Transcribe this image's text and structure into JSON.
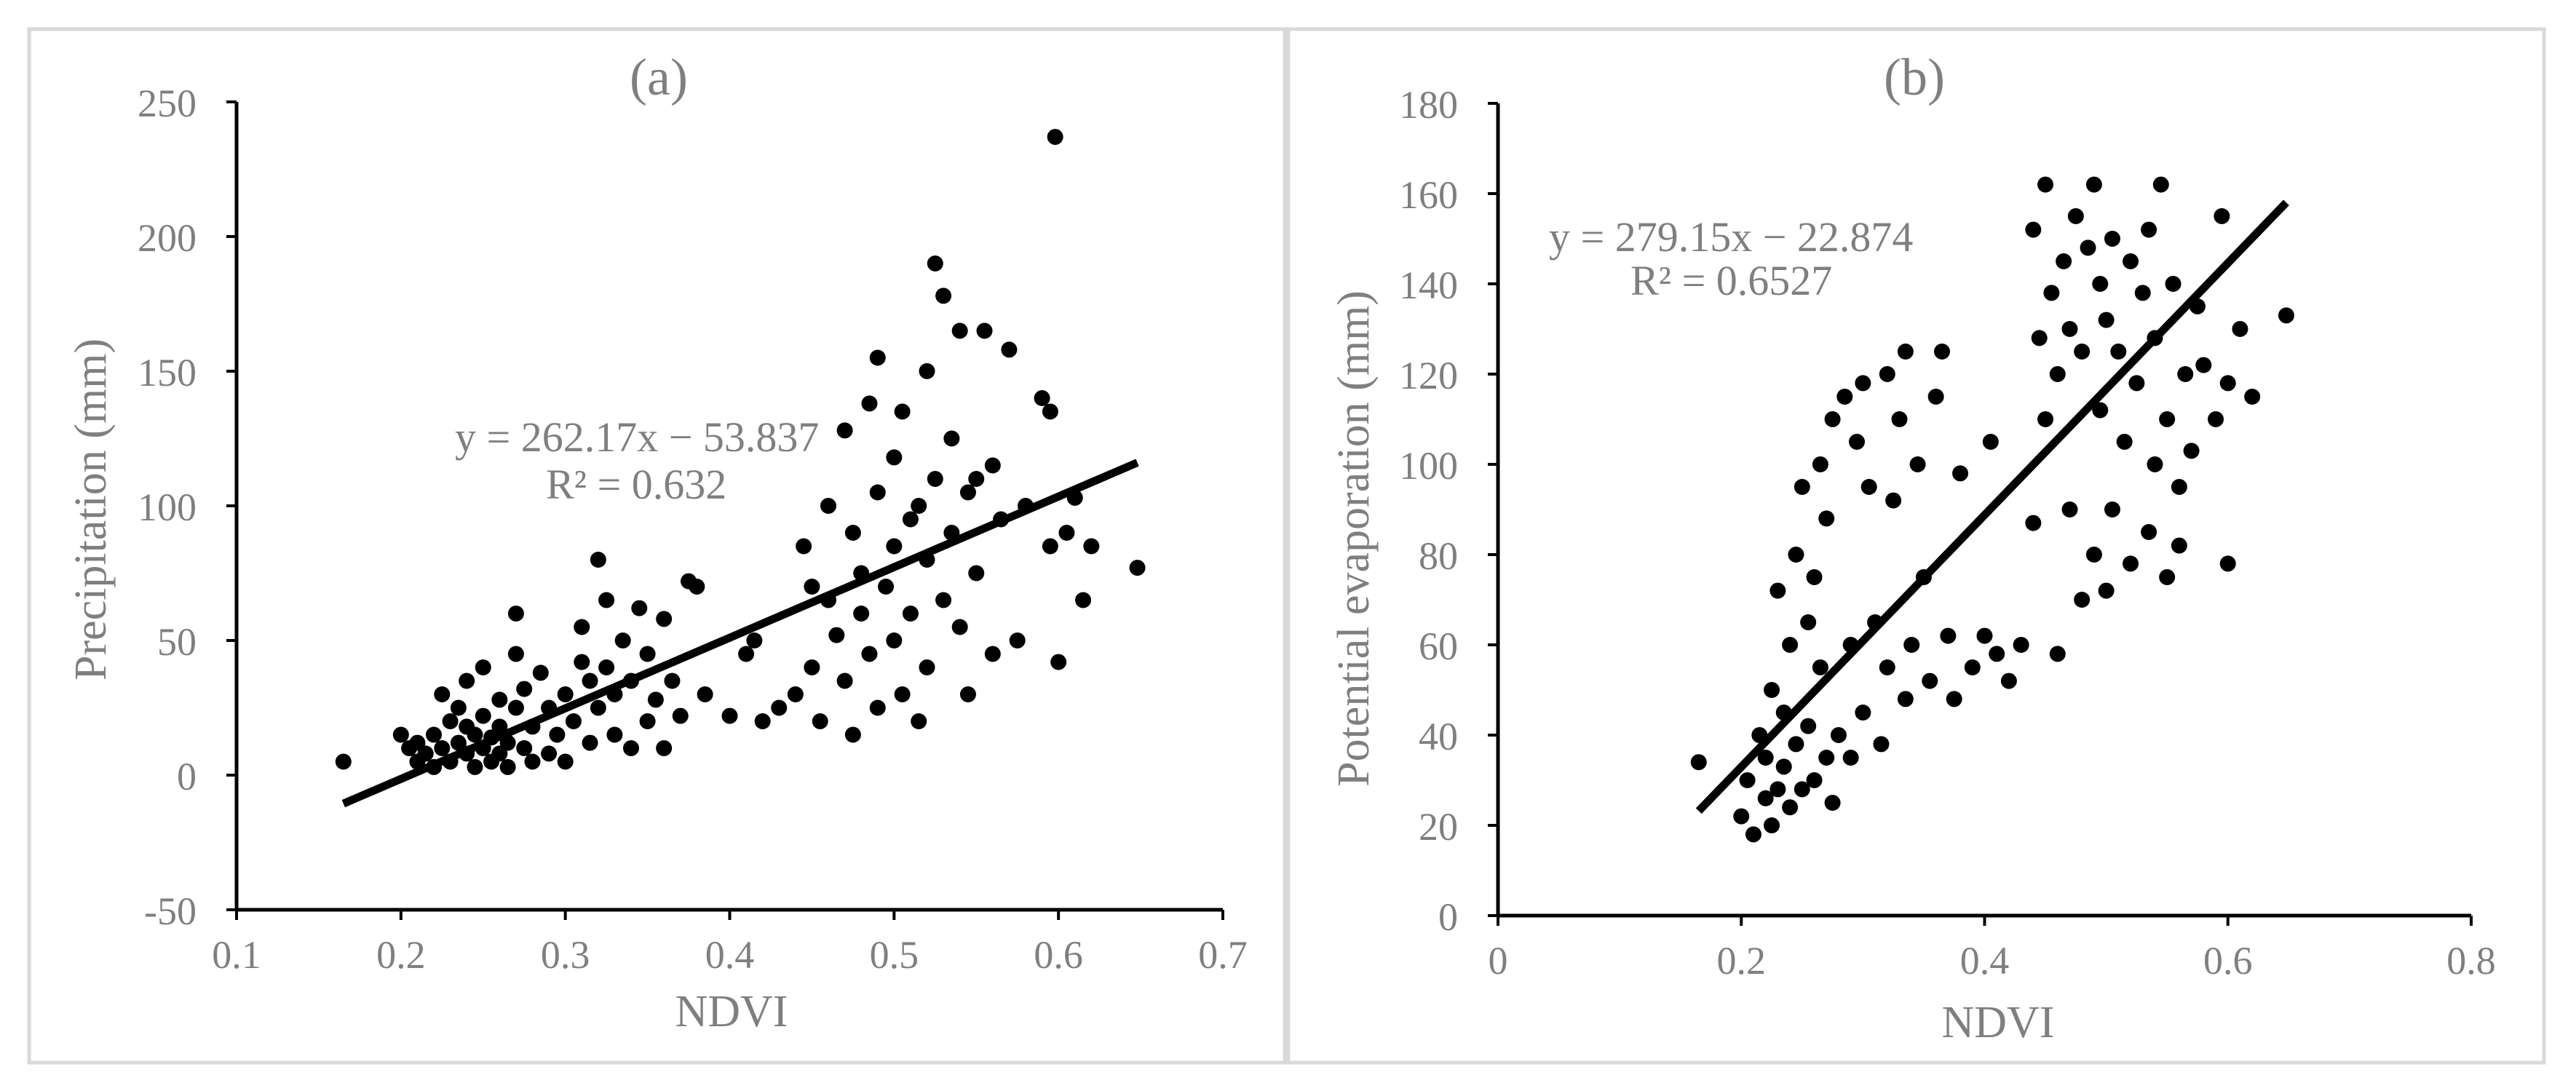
{
  "colors": {
    "frame": "#d9d9d9",
    "text": "#7f7f7f",
    "axis": "#000000",
    "marker": "#000000",
    "trend": "#000000"
  },
  "chart_data": [
    {
      "type": "scatter",
      "title": "(a)",
      "xlabel": "NDVI",
      "ylabel": "Precipitation (mm)",
      "xlim": [
        0.1,
        0.7
      ],
      "ylim": [
        -50,
        250
      ],
      "xticks": [
        "0.1",
        "0.2",
        "0.3",
        "0.4",
        "0.5",
        "0.6",
        "0.7"
      ],
      "yticks": [
        "-50",
        "0",
        "50",
        "100",
        "150",
        "200",
        "250"
      ],
      "grid": false,
      "legend": "none",
      "equation": "y = 262.17x − 53.837",
      "r2": "R² = 0.632",
      "trendline": {
        "slope": 262.17,
        "intercept": -53.837,
        "x_range": [
          0.165,
          0.648
        ]
      },
      "points": [
        [
          0.165,
          5
        ],
        [
          0.2,
          15
        ],
        [
          0.205,
          10
        ],
        [
          0.21,
          5
        ],
        [
          0.21,
          12
        ],
        [
          0.215,
          8
        ],
        [
          0.22,
          15
        ],
        [
          0.22,
          3
        ],
        [
          0.225,
          10
        ],
        [
          0.225,
          30
        ],
        [
          0.23,
          20
        ],
        [
          0.23,
          5
        ],
        [
          0.235,
          12
        ],
        [
          0.235,
          25
        ],
        [
          0.24,
          8
        ],
        [
          0.24,
          18
        ],
        [
          0.24,
          35
        ],
        [
          0.245,
          3
        ],
        [
          0.245,
          15
        ],
        [
          0.25,
          10
        ],
        [
          0.25,
          22
        ],
        [
          0.25,
          40
        ],
        [
          0.255,
          5
        ],
        [
          0.255,
          14
        ],
        [
          0.26,
          28
        ],
        [
          0.26,
          8
        ],
        [
          0.26,
          18
        ],
        [
          0.265,
          3
        ],
        [
          0.265,
          12
        ],
        [
          0.27,
          45
        ],
        [
          0.27,
          60
        ],
        [
          0.27,
          25
        ],
        [
          0.275,
          10
        ],
        [
          0.275,
          32
        ],
        [
          0.28,
          5
        ],
        [
          0.28,
          18
        ],
        [
          0.285,
          38
        ],
        [
          0.29,
          8
        ],
        [
          0.29,
          25
        ],
        [
          0.295,
          15
        ],
        [
          0.3,
          30
        ],
        [
          0.3,
          5
        ],
        [
          0.305,
          20
        ],
        [
          0.31,
          55
        ],
        [
          0.31,
          42
        ],
        [
          0.315,
          35
        ],
        [
          0.315,
          12
        ],
        [
          0.32,
          80
        ],
        [
          0.32,
          25
        ],
        [
          0.325,
          65
        ],
        [
          0.325,
          40
        ],
        [
          0.33,
          30
        ],
        [
          0.33,
          15
        ],
        [
          0.335,
          50
        ],
        [
          0.34,
          10
        ],
        [
          0.34,
          35
        ],
        [
          0.345,
          62
        ],
        [
          0.35,
          20
        ],
        [
          0.35,
          45
        ],
        [
          0.355,
          28
        ],
        [
          0.36,
          58
        ],
        [
          0.36,
          10
        ],
        [
          0.365,
          35
        ],
        [
          0.37,
          22
        ],
        [
          0.375,
          72
        ],
        [
          0.38,
          70
        ],
        [
          0.385,
          30
        ],
        [
          0.4,
          22
        ],
        [
          0.41,
          45
        ],
        [
          0.415,
          50
        ],
        [
          0.42,
          20
        ],
        [
          0.43,
          25
        ],
        [
          0.44,
          30
        ],
        [
          0.445,
          85
        ],
        [
          0.45,
          70
        ],
        [
          0.45,
          40
        ],
        [
          0.455,
          20
        ],
        [
          0.46,
          65
        ],
        [
          0.46,
          100
        ],
        [
          0.465,
          52
        ],
        [
          0.47,
          35
        ],
        [
          0.47,
          128
        ],
        [
          0.475,
          90
        ],
        [
          0.475,
          15
        ],
        [
          0.48,
          60
        ],
        [
          0.48,
          75
        ],
        [
          0.485,
          138
        ],
        [
          0.485,
          45
        ],
        [
          0.49,
          155
        ],
        [
          0.49,
          105
        ],
        [
          0.49,
          25
        ],
        [
          0.495,
          70
        ],
        [
          0.5,
          118
        ],
        [
          0.5,
          50
        ],
        [
          0.5,
          85
        ],
        [
          0.505,
          135
        ],
        [
          0.505,
          30
        ],
        [
          0.51,
          95
        ],
        [
          0.51,
          60
        ],
        [
          0.515,
          100
        ],
        [
          0.515,
          20
        ],
        [
          0.52,
          150
        ],
        [
          0.52,
          80
        ],
        [
          0.52,
          40
        ],
        [
          0.525,
          190
        ],
        [
          0.525,
          110
        ],
        [
          0.53,
          178
        ],
        [
          0.53,
          65
        ],
        [
          0.535,
          125
        ],
        [
          0.535,
          90
        ],
        [
          0.54,
          165
        ],
        [
          0.54,
          55
        ],
        [
          0.545,
          105
        ],
        [
          0.545,
          30
        ],
        [
          0.55,
          110
        ],
        [
          0.55,
          75
        ],
        [
          0.555,
          165
        ],
        [
          0.56,
          45
        ],
        [
          0.56,
          115
        ],
        [
          0.565,
          95
        ],
        [
          0.57,
          158
        ],
        [
          0.575,
          50
        ],
        [
          0.58,
          100
        ],
        [
          0.59,
          140
        ],
        [
          0.595,
          135
        ],
        [
          0.595,
          85
        ],
        [
          0.598,
          237
        ],
        [
          0.6,
          42
        ],
        [
          0.605,
          90
        ],
        [
          0.61,
          103
        ],
        [
          0.615,
          65
        ],
        [
          0.62,
          85
        ],
        [
          0.648,
          77
        ]
      ]
    },
    {
      "type": "scatter",
      "title": "(b)",
      "xlabel": "NDVI",
      "ylabel": "Potential evaporation (mm)",
      "xlim": [
        0,
        0.8
      ],
      "ylim": [
        0,
        180
      ],
      "xticks": [
        "0",
        "0.2",
        "0.4",
        "0.6",
        "0.8"
      ],
      "yticks": [
        "0",
        "20",
        "40",
        "60",
        "80",
        "100",
        "120",
        "140",
        "160",
        "180"
      ],
      "grid": false,
      "legend": "none",
      "equation": "y = 279.15x − 22.874",
      "r2": "R² = 0.6527",
      "trendline": {
        "slope": 279.15,
        "intercept": -22.874,
        "x_range": [
          0.165,
          0.648
        ]
      },
      "points": [
        [
          0.165,
          34
        ],
        [
          0.2,
          22
        ],
        [
          0.205,
          30
        ],
        [
          0.21,
          18
        ],
        [
          0.215,
          40
        ],
        [
          0.22,
          26
        ],
        [
          0.22,
          35
        ],
        [
          0.225,
          20
        ],
        [
          0.225,
          50
        ],
        [
          0.23,
          28
        ],
        [
          0.23,
          72
        ],
        [
          0.235,
          33
        ],
        [
          0.235,
          45
        ],
        [
          0.24,
          24
        ],
        [
          0.24,
          60
        ],
        [
          0.245,
          38
        ],
        [
          0.245,
          80
        ],
        [
          0.25,
          28
        ],
        [
          0.25,
          95
        ],
        [
          0.255,
          42
        ],
        [
          0.255,
          65
        ],
        [
          0.26,
          30
        ],
        [
          0.26,
          75
        ],
        [
          0.265,
          55
        ],
        [
          0.265,
          100
        ],
        [
          0.27,
          35
        ],
        [
          0.27,
          88
        ],
        [
          0.275,
          25
        ],
        [
          0.275,
          110
        ],
        [
          0.28,
          40
        ],
        [
          0.285,
          115
        ],
        [
          0.29,
          60
        ],
        [
          0.29,
          35
        ],
        [
          0.295,
          105
        ],
        [
          0.3,
          118
        ],
        [
          0.3,
          45
        ],
        [
          0.305,
          95
        ],
        [
          0.31,
          65
        ],
        [
          0.315,
          38
        ],
        [
          0.32,
          55
        ],
        [
          0.32,
          120
        ],
        [
          0.325,
          92
        ],
        [
          0.33,
          110
        ],
        [
          0.335,
          125
        ],
        [
          0.335,
          48
        ],
        [
          0.34,
          60
        ],
        [
          0.345,
          100
        ],
        [
          0.35,
          75
        ],
        [
          0.355,
          52
        ],
        [
          0.36,
          115
        ],
        [
          0.365,
          125
        ],
        [
          0.37,
          62
        ],
        [
          0.375,
          48
        ],
        [
          0.38,
          98
        ],
        [
          0.39,
          55
        ],
        [
          0.4,
          62
        ],
        [
          0.405,
          105
        ],
        [
          0.41,
          58
        ],
        [
          0.42,
          52
        ],
        [
          0.43,
          60
        ],
        [
          0.44,
          152
        ],
        [
          0.44,
          87
        ],
        [
          0.445,
          128
        ],
        [
          0.45,
          162
        ],
        [
          0.45,
          110
        ],
        [
          0.455,
          138
        ],
        [
          0.46,
          120
        ],
        [
          0.46,
          58
        ],
        [
          0.465,
          145
        ],
        [
          0.47,
          90
        ],
        [
          0.47,
          130
        ],
        [
          0.475,
          155
        ],
        [
          0.48,
          70
        ],
        [
          0.48,
          125
        ],
        [
          0.485,
          148
        ],
        [
          0.49,
          162
        ],
        [
          0.49,
          80
        ],
        [
          0.495,
          112
        ],
        [
          0.495,
          140
        ],
        [
          0.5,
          72
        ],
        [
          0.5,
          132
        ],
        [
          0.505,
          90
        ],
        [
          0.505,
          150
        ],
        [
          0.51,
          125
        ],
        [
          0.515,
          105
        ],
        [
          0.52,
          145
        ],
        [
          0.52,
          78
        ],
        [
          0.525,
          118
        ],
        [
          0.53,
          138
        ],
        [
          0.535,
          152
        ],
        [
          0.535,
          85
        ],
        [
          0.54,
          100
        ],
        [
          0.54,
          128
        ],
        [
          0.545,
          162
        ],
        [
          0.55,
          75
        ],
        [
          0.55,
          110
        ],
        [
          0.555,
          140
        ],
        [
          0.56,
          82
        ],
        [
          0.56,
          95
        ],
        [
          0.565,
          120
        ],
        [
          0.57,
          103
        ],
        [
          0.575,
          135
        ],
        [
          0.58,
          122
        ],
        [
          0.59,
          110
        ],
        [
          0.595,
          155
        ],
        [
          0.6,
          78
        ],
        [
          0.6,
          118
        ],
        [
          0.61,
          130
        ],
        [
          0.62,
          115
        ],
        [
          0.648,
          133
        ]
      ]
    }
  ]
}
